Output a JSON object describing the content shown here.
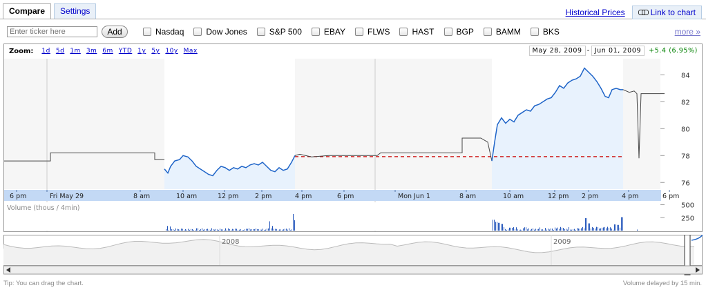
{
  "tabs": [
    {
      "label": "Compare",
      "active": true
    },
    {
      "label": "Settings",
      "active": false
    }
  ],
  "toplinks": {
    "historical": "Historical Prices",
    "link_chart": "Link to chart"
  },
  "compare": {
    "placeholder": "Enter ticker here",
    "add_label": "Add",
    "checkboxes": [
      "Nasdaq",
      "Dow Jones",
      "S&P 500",
      "EBAY",
      "FLWS",
      "HAST",
      "BGP",
      "BAMM",
      "BKS"
    ],
    "more": "more »"
  },
  "zoom": {
    "label": "Zoom:",
    "options": [
      "1d",
      "5d",
      "1m",
      "3m",
      "6m",
      "YTD",
      "1y",
      "5y",
      "10y",
      "Max"
    ]
  },
  "range": {
    "start": "May 28, 2009",
    "sep": "-",
    "end": "Jun 01, 2009",
    "change": "+5.4 (6.95%)"
  },
  "volume_label": "Volume (thous / 4min)",
  "footer": {
    "tip": "Tip: You can drag the chart.",
    "delay": "Volume delayed by 15 min."
  },
  "colors": {
    "price_line": "#1e64c8",
    "afterhours_line": "#444444",
    "prev_close": "#cc0000",
    "time_bar": "#c3d9f5",
    "fill": "#e8f2fd"
  },
  "chart_data": {
    "type": "line",
    "x_ticks": [
      "6 pm",
      "Fri May 29",
      "8 am",
      "10 am",
      "12 pm",
      "2 pm",
      "4 pm",
      "6 pm",
      "Mon Jun 1",
      "8 am",
      "10 am",
      "12 pm",
      "2 pm",
      "4 pm",
      "6 pm"
    ],
    "y_ticks": [
      76,
      78,
      80,
      82,
      84
    ],
    "ylim": [
      75.5,
      85.2
    ],
    "volume_ticks": [
      250,
      500
    ],
    "volume_ylim": [
      0,
      520
    ],
    "previous_close": 77.92,
    "series": [
      {
        "session": "after-hours",
        "points": [
          [
            0,
            77.6
          ],
          [
            67,
            77.6
          ],
          [
            67,
            78.2
          ],
          [
            218,
            78.2
          ],
          [
            218,
            77.7
          ],
          [
            232,
            77.7
          ]
        ]
      },
      {
        "session": "regular",
        "points": [
          [
            232,
            77.0
          ],
          [
            237,
            76.7
          ],
          [
            241,
            77.2
          ],
          [
            247,
            77.6
          ],
          [
            254,
            77.7
          ],
          [
            259,
            78.0
          ],
          [
            266,
            77.9
          ],
          [
            272,
            77.6
          ],
          [
            278,
            77.2
          ],
          [
            284,
            77.0
          ],
          [
            290,
            76.8
          ],
          [
            296,
            76.6
          ],
          [
            302,
            76.5
          ],
          [
            308,
            76.9
          ],
          [
            314,
            77.2
          ],
          [
            320,
            77.1
          ],
          [
            326,
            76.9
          ],
          [
            332,
            77.1
          ],
          [
            338,
            77.0
          ],
          [
            344,
            77.2
          ],
          [
            350,
            77.1
          ],
          [
            356,
            77.3
          ],
          [
            362,
            77.4
          ],
          [
            368,
            77.3
          ],
          [
            374,
            77.5
          ],
          [
            380,
            77.2
          ],
          [
            386,
            76.9
          ],
          [
            392,
            76.8
          ],
          [
            398,
            77.1
          ],
          [
            404,
            76.9
          ],
          [
            410,
            77.0
          ],
          [
            416,
            77.5
          ],
          [
            421,
            78.0
          ]
        ]
      },
      {
        "session": "after-hours",
        "points": [
          [
            421,
            78.0
          ],
          [
            428,
            78.1
          ],
          [
            445,
            77.9
          ],
          [
            470,
            78.0
          ],
          [
            540,
            78.0
          ],
          [
            545,
            78.2
          ],
          [
            663,
            78.2
          ],
          [
            663,
            79.3
          ],
          [
            690,
            79.3
          ],
          [
            700,
            79.0
          ],
          [
            706,
            77.6
          ]
        ]
      },
      {
        "session": "regular",
        "points": [
          [
            706,
            77.6
          ],
          [
            710,
            79.0
          ],
          [
            714,
            80.3
          ],
          [
            720,
            80.8
          ],
          [
            726,
            80.4
          ],
          [
            732,
            80.7
          ],
          [
            738,
            80.5
          ],
          [
            744,
            81.0
          ],
          [
            750,
            81.2
          ],
          [
            756,
            81.4
          ],
          [
            762,
            81.3
          ],
          [
            768,
            81.7
          ],
          [
            774,
            81.8
          ],
          [
            780,
            82.0
          ],
          [
            786,
            82.2
          ],
          [
            792,
            82.3
          ],
          [
            798,
            82.7
          ],
          [
            804,
            83.2
          ],
          [
            810,
            83.0
          ],
          [
            816,
            83.4
          ],
          [
            822,
            83.6
          ],
          [
            828,
            83.7
          ],
          [
            834,
            83.9
          ],
          [
            840,
            84.5
          ],
          [
            846,
            84.2
          ],
          [
            852,
            83.9
          ],
          [
            858,
            83.5
          ],
          [
            864,
            83.0
          ],
          [
            870,
            82.4
          ],
          [
            875,
            82.3
          ],
          [
            880,
            82.9
          ],
          [
            886,
            83.0
          ],
          [
            892,
            82.9
          ],
          [
            896,
            82.9
          ]
        ]
      },
      {
        "session": "after-hours",
        "points": [
          [
            896,
            82.9
          ],
          [
            905,
            82.7
          ],
          [
            912,
            82.8
          ],
          [
            916,
            82.6
          ],
          [
            919,
            77.8
          ],
          [
            922,
            82.6
          ],
          [
            930,
            82.6
          ],
          [
            956,
            82.6
          ]
        ]
      }
    ],
    "navigator": {
      "labels": [
        "2008",
        "2009"
      ]
    }
  }
}
